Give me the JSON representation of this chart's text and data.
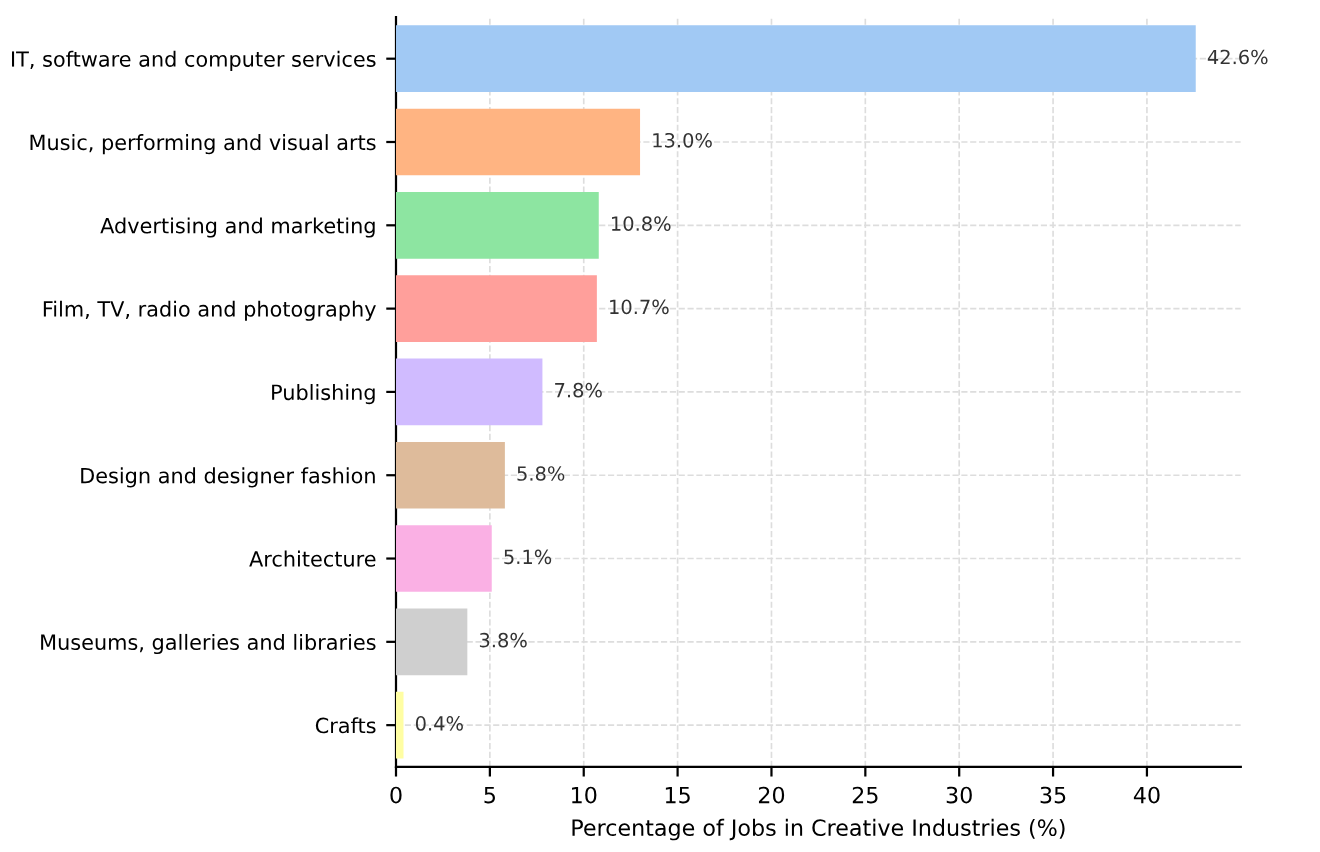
{
  "chart_data": {
    "type": "bar",
    "orientation": "horizontal",
    "xlabel": "Percentage of Jobs in Creative Industries (%)",
    "categories": [
      "IT, software and computer services",
      "Music, performing and visual arts",
      "Advertising and marketing",
      "Film, TV, radio and photography",
      "Publishing",
      "Design and designer fashion",
      "Architecture",
      "Museums, galleries and libraries",
      "Crafts"
    ],
    "values": [
      42.6,
      13.0,
      10.8,
      10.7,
      7.8,
      5.8,
      5.1,
      3.8,
      0.4
    ],
    "value_labels": [
      "42.6%",
      "13.0%",
      "10.8%",
      "10.7%",
      "7.8%",
      "5.8%",
      "5.1%",
      "3.8%",
      "0.4%"
    ],
    "colors": [
      "#a1c9f4",
      "#ffb482",
      "#8de5a1",
      "#ff9f9b",
      "#d0bbff",
      "#debb9b",
      "#fab0e4",
      "#cfcfcf",
      "#fffea3"
    ],
    "xlim": [
      0,
      45
    ],
    "xticks": [
      0,
      5,
      10,
      15,
      20,
      25,
      30,
      35,
      40
    ],
    "grid": true
  }
}
